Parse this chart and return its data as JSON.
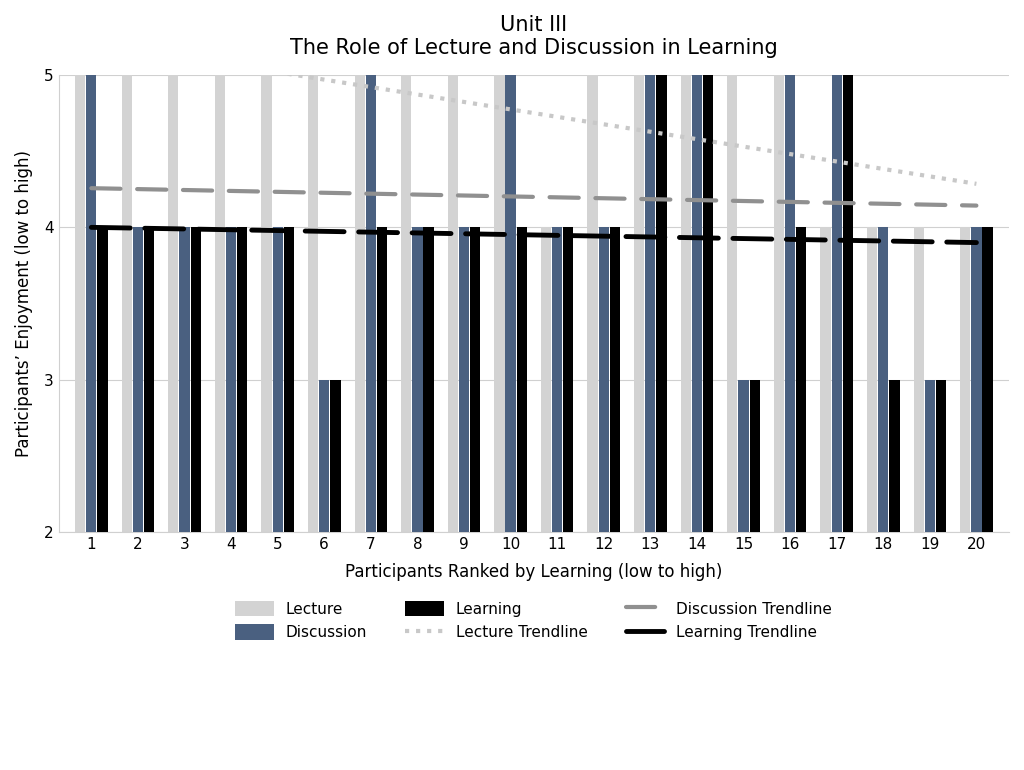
{
  "title_line1": "Unit III",
  "title_line2": "The Role of Lecture and Discussion in Learning",
  "xlabel": "Participants Ranked by Learning (low to high)",
  "ylabel": "Participants’ Enjoyment (low to high)",
  "participants": [
    1,
    2,
    3,
    4,
    5,
    6,
    7,
    8,
    9,
    10,
    11,
    12,
    13,
    14,
    15,
    16,
    17,
    18,
    19,
    20
  ],
  "lecture": [
    5,
    5,
    5,
    5,
    5,
    5,
    5,
    5,
    5,
    5,
    4,
    5,
    5,
    5,
    5,
    5,
    4,
    4,
    4,
    4
  ],
  "discussion": [
    5,
    4,
    4,
    4,
    4,
    3,
    5,
    4,
    4,
    5,
    4,
    4,
    5,
    5,
    3,
    5,
    5,
    4,
    3,
    4
  ],
  "learning": [
    4,
    4,
    4,
    4,
    4,
    3,
    4,
    4,
    4,
    4,
    4,
    4,
    5,
    5,
    3,
    4,
    5,
    3,
    3,
    4
  ],
  "ylim_min": 2,
  "ylim_max": 5,
  "xlim_min": 0.3,
  "xlim_max": 20.7,
  "bar_width": 0.22,
  "bar_gap": 0.02,
  "lecture_color": "#d3d3d3",
  "discussion_color": "#4a6080",
  "learning_color": "#000000",
  "lecture_trendline_color": "#c8c8c8",
  "discussion_trendline_color": "#909090",
  "learning_trendline_color": "#000000",
  "background_color": "#ffffff",
  "grid_color": "#d0d0d0",
  "title_fontsize": 15,
  "axis_label_fontsize": 12,
  "tick_fontsize": 11,
  "legend_fontsize": 11,
  "border_color": "#d0d0d0"
}
